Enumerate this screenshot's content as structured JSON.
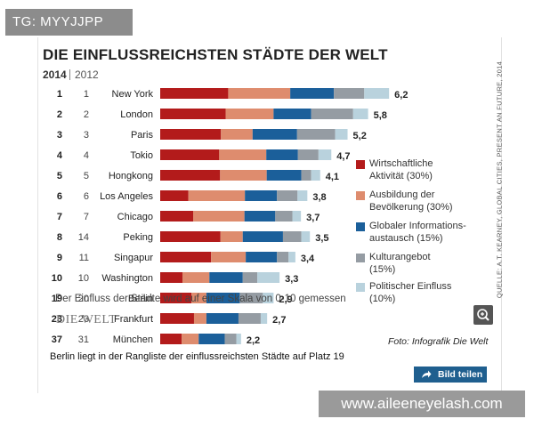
{
  "badge": {
    "text": "TG: MYYJJPP"
  },
  "header": {
    "title": "DIE EINFLUSSREICHSTEN STÄDTE DER WELT"
  },
  "chart_data": {
    "type": "bar",
    "stacked": true,
    "orientation": "horizontal",
    "title": "DIE EINFLUSSREICHSTEN STÄDTE DER WELT",
    "year_labels": [
      "2014",
      "2012"
    ],
    "scale_max": 6.2,
    "rows": [
      {
        "rank2014": "1",
        "rank2012": "1",
        "city": "New York",
        "total": "6,2",
        "values": [
          1.59,
          1.45,
          1.02,
          0.71,
          0.58
        ]
      },
      {
        "rank2014": "2",
        "rank2012": "2",
        "city": "London",
        "total": "5,8",
        "values": [
          1.53,
          1.12,
          0.88,
          0.98,
          0.35
        ]
      },
      {
        "rank2014": "3",
        "rank2012": "3",
        "city": "Paris",
        "total": "5,2",
        "values": [
          1.42,
          0.74,
          1.04,
          0.89,
          0.29
        ]
      },
      {
        "rank2014": "4",
        "rank2012": "4",
        "city": "Tokio",
        "total": "4,7",
        "values": [
          1.38,
          1.1,
          0.74,
          0.48,
          0.3
        ]
      },
      {
        "rank2014": "5",
        "rank2012": "5",
        "city": "Hongkong",
        "total": "4,1",
        "values": [
          1.4,
          1.09,
          0.81,
          0.23,
          0.21
        ]
      },
      {
        "rank2014": "6",
        "rank2012": "6",
        "city": "Los Angeles",
        "total": "3,8",
        "values": [
          0.66,
          1.32,
          0.75,
          0.48,
          0.23
        ]
      },
      {
        "rank2014": "7",
        "rank2012": "7",
        "city": "Chicago",
        "total": "3,7",
        "values": [
          0.77,
          1.2,
          0.72,
          0.4,
          0.2
        ]
      },
      {
        "rank2014": "8",
        "rank2012": "14",
        "city": "Peking",
        "total": "3,5",
        "values": [
          1.41,
          0.52,
          0.94,
          0.43,
          0.2
        ]
      },
      {
        "rank2014": "9",
        "rank2012": "11",
        "city": "Singapur",
        "total": "3,4",
        "values": [
          1.19,
          0.81,
          0.73,
          0.27,
          0.16
        ]
      },
      {
        "rank2014": "10",
        "rank2012": "10",
        "city": "Washington",
        "total": "3,3",
        "values": [
          0.52,
          0.63,
          0.78,
          0.34,
          0.52
        ]
      },
      {
        "rank2014": "19",
        "rank2012": "20",
        "city": "Berlin",
        "total": "2,9",
        "values": [
          0.73,
          0.35,
          0.78,
          0.54,
          0.25
        ]
      },
      {
        "rank2014": "23",
        "rank2012": "23",
        "city": "Frankfurt",
        "total": "2,7",
        "values": [
          0.79,
          0.29,
          0.75,
          0.52,
          0.15
        ]
      },
      {
        "rank2014": "37",
        "rank2012": "31",
        "city": "München",
        "total": "2,2",
        "values": [
          0.5,
          0.4,
          0.61,
          0.27,
          0.11
        ]
      }
    ],
    "series": [
      {
        "name": "Wirtschaftliche Aktivität (30%)",
        "color": "#b31b1b"
      },
      {
        "name": "Ausbildung der Bevölkerung (30%)",
        "color": "#de8c6e"
      },
      {
        "name": "Globaler Informations-austausch (15%)",
        "color": "#1b5f9a"
      },
      {
        "name": "Kulturangebot (15%)",
        "color": "#959ca3"
      },
      {
        "name": "Politischer Einfluss (10%)",
        "color": "#b9d2dd"
      }
    ],
    "legend_lines": [
      [
        "Wirtschaftliche",
        "Aktivität (30%)"
      ],
      [
        "Ausbildung der",
        "Bevölkerung (30%)"
      ],
      [
        "Globaler Informations-",
        "austausch (15%)"
      ],
      [
        "Kulturangebot",
        "(15%)"
      ],
      [
        "Politischer Einfluss",
        "(10%)"
      ]
    ],
    "legend_position": "right"
  },
  "source_note": "QUELLE: A.T. KEARNEY, GLOBAL CITIES, PRESENT AN FUTURE, 2014",
  "footnote": "Der Einfluss der Städte wird auf einer Skala von 0-10 gemessen",
  "logo_text": "DIE WELT",
  "credit": "Foto: Infografik Die Welt",
  "caption": "Berlin liegt in der Rangliste der einflussreichsten Städte auf Platz 19",
  "share_button": "Bild teilen",
  "watermark": "www.aileeneyelash.com",
  "icons": {
    "zoom": "zoom-in-icon",
    "share": "share-icon"
  }
}
